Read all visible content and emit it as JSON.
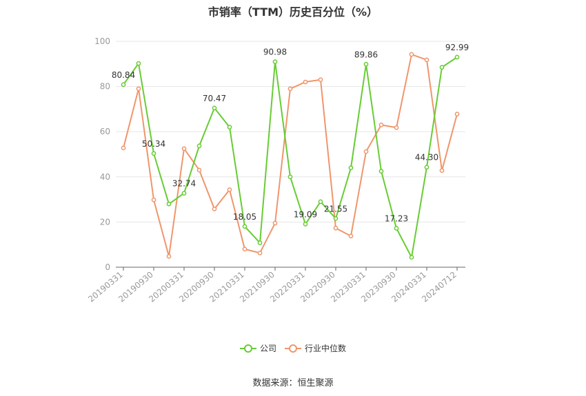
{
  "chart_data": {
    "type": "line",
    "title": "市销率（TTM）历史百分位（%）",
    "xlabel": "",
    "ylabel": "",
    "ylim": [
      0,
      100
    ],
    "yticks": [
      0,
      20,
      40,
      60,
      80,
      100
    ],
    "x_tick_labels": [
      "20190331",
      "20190930",
      "20200331",
      "20200930",
      "20210331",
      "20210930",
      "20220331",
      "20220930",
      "20230331",
      "20230930",
      "20240331",
      "20240712"
    ],
    "grid": true,
    "legend_position": "bottom-center",
    "series": [
      {
        "name": "公司",
        "color": "#66cc33",
        "values": [
          80.84,
          90.2,
          50.34,
          28.0,
          32.74,
          53.7,
          70.47,
          62.0,
          18.05,
          10.8,
          90.98,
          40.0,
          19.09,
          29.0,
          21.55,
          44.0,
          89.86,
          42.5,
          17.23,
          4.4,
          44.3,
          88.5,
          92.99
        ],
        "labels": {
          "0": "80.84",
          "2": "50.34",
          "4": "32.74",
          "6": "70.47",
          "8": "18.05",
          "10": "90.98",
          "12": "19.09",
          "14": "21.55",
          "16": "89.86",
          "18": "17.23",
          "20": "44.30",
          "22": "92.99"
        }
      },
      {
        "name": "行业中位数",
        "color": "#f0956a",
        "values": [
          52.8,
          79.0,
          29.8,
          4.8,
          52.5,
          43.0,
          25.8,
          34.3,
          8.0,
          6.3,
          19.5,
          79.0,
          82.0,
          83.0,
          17.3,
          13.8,
          51.2,
          63.0,
          61.8,
          94.2,
          91.8,
          42.8,
          67.8
        ]
      }
    ]
  },
  "source": "数据来源：恒生聚源"
}
